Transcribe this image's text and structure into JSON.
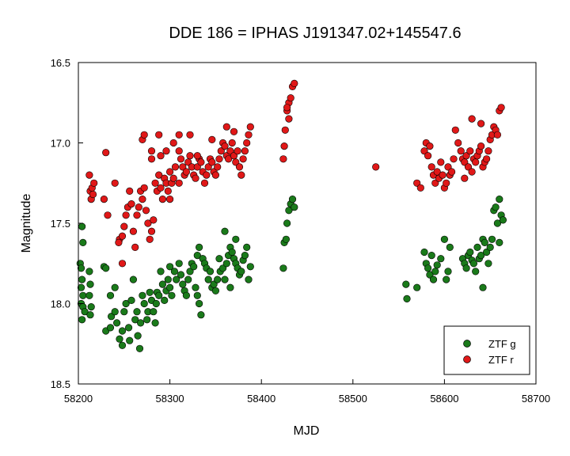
{
  "chart_data": {
    "type": "scatter",
    "title": "DDE 186 = IPHAS J191347.02+145547.6",
    "xlabel": "MJD",
    "ylabel": "Magnitude",
    "xlim": [
      58200,
      58700
    ],
    "ylim": [
      16.5,
      18.5
    ],
    "y_inverted": true,
    "grid": false,
    "legend_position": "bottom-right",
    "xticks": [
      "58200",
      "58300",
      "58400",
      "58500",
      "58600",
      "58700"
    ],
    "yticks": [
      "16.5",
      "17.0",
      "17.5",
      "18.0",
      "18.5"
    ],
    "series": [
      {
        "name": "ZTF g",
        "color": "#1a7a1a",
        "points": [
          [
            58202,
            17.75
          ],
          [
            58204,
            17.52
          ],
          [
            58205,
            17.62
          ],
          [
            58203,
            17.78
          ],
          [
            58204,
            17.85
          ],
          [
            58203,
            17.9
          ],
          [
            58205,
            17.95
          ],
          [
            58203,
            18.0
          ],
          [
            58205,
            18.02
          ],
          [
            58207,
            18.05
          ],
          [
            58204,
            18.1
          ],
          [
            58212,
            17.8
          ],
          [
            58213,
            17.88
          ],
          [
            58212,
            17.95
          ],
          [
            58214,
            18.02
          ],
          [
            58213,
            18.07
          ],
          [
            58228,
            17.77
          ],
          [
            58230,
            17.78
          ],
          [
            58230,
            18.17
          ],
          [
            58235,
            18.15
          ],
          [
            58236,
            18.08
          ],
          [
            58235,
            17.95
          ],
          [
            58240,
            17.9
          ],
          [
            58240,
            18.05
          ],
          [
            58242,
            18.12
          ],
          [
            58245,
            18.22
          ],
          [
            58248,
            18.26
          ],
          [
            58248,
            18.17
          ],
          [
            58250,
            18.05
          ],
          [
            58252,
            18.0
          ],
          [
            58255,
            18.15
          ],
          [
            58256,
            18.23
          ],
          [
            58258,
            17.98
          ],
          [
            58260,
            17.85
          ],
          [
            58262,
            18.1
          ],
          [
            58264,
            18.05
          ],
          [
            58265,
            18.2
          ],
          [
            58267,
            18.28
          ],
          [
            58268,
            18.12
          ],
          [
            58270,
            17.95
          ],
          [
            58272,
            18.0
          ],
          [
            58275,
            18.1
          ],
          [
            58276,
            18.05
          ],
          [
            58278,
            17.93
          ],
          [
            58280,
            17.98
          ],
          [
            58282,
            18.05
          ],
          [
            58284,
            18.12
          ],
          [
            58285,
            18.0
          ],
          [
            58286,
            17.93
          ],
          [
            58288,
            17.95
          ],
          [
            58290,
            17.8
          ],
          [
            58292,
            17.88
          ],
          [
            58294,
            17.98
          ],
          [
            58296,
            17.92
          ],
          [
            58298,
            17.85
          ],
          [
            58300,
            17.9
          ],
          [
            58302,
            17.95
          ],
          [
            58300,
            17.77
          ],
          [
            58305,
            17.8
          ],
          [
            58307,
            17.85
          ],
          [
            58310,
            17.75
          ],
          [
            58312,
            17.82
          ],
          [
            58314,
            17.88
          ],
          [
            58316,
            17.92
          ],
          [
            58318,
            17.95
          ],
          [
            58320,
            17.85
          ],
          [
            58322,
            17.8
          ],
          [
            58324,
            17.75
          ],
          [
            58326,
            17.77
          ],
          [
            58328,
            17.9
          ],
          [
            58330,
            17.95
          ],
          [
            58332,
            18.0
          ],
          [
            58334,
            18.07
          ],
          [
            58330,
            17.7
          ],
          [
            58332,
            17.65
          ],
          [
            58336,
            17.72
          ],
          [
            58338,
            17.75
          ],
          [
            58340,
            17.78
          ],
          [
            58342,
            17.85
          ],
          [
            58344,
            17.8
          ],
          [
            58346,
            17.9
          ],
          [
            58348,
            17.88
          ],
          [
            58350,
            17.92
          ],
          [
            58352,
            17.85
          ],
          [
            58354,
            17.72
          ],
          [
            58355,
            17.8
          ],
          [
            58358,
            17.78
          ],
          [
            58360,
            17.85
          ],
          [
            58362,
            17.75
          ],
          [
            58364,
            17.7
          ],
          [
            58366,
            17.65
          ],
          [
            58368,
            17.68
          ],
          [
            58370,
            17.72
          ],
          [
            58372,
            17.75
          ],
          [
            58374,
            17.78
          ],
          [
            58376,
            17.82
          ],
          [
            58378,
            17.8
          ],
          [
            58380,
            17.73
          ],
          [
            58382,
            17.7
          ],
          [
            58384,
            17.65
          ],
          [
            58386,
            17.85
          ],
          [
            58388,
            17.77
          ],
          [
            58366,
            17.9
          ],
          [
            58360,
            17.55
          ],
          [
            58372,
            17.6
          ],
          [
            58424,
            17.78
          ],
          [
            58425,
            17.62
          ],
          [
            58427,
            17.6
          ],
          [
            58428,
            17.5
          ],
          [
            58430,
            17.42
          ],
          [
            58432,
            17.38
          ],
          [
            58434,
            17.35
          ],
          [
            58436,
            17.4
          ],
          [
            58558,
            17.88
          ],
          [
            58559,
            17.97
          ],
          [
            58570,
            17.9
          ],
          [
            58578,
            17.68
          ],
          [
            58580,
            17.75
          ],
          [
            58582,
            17.78
          ],
          [
            58584,
            17.82
          ],
          [
            58586,
            17.7
          ],
          [
            58588,
            17.85
          ],
          [
            58590,
            17.8
          ],
          [
            58592,
            17.76
          ],
          [
            58596,
            17.72
          ],
          [
            58600,
            17.6
          ],
          [
            58602,
            17.85
          ],
          [
            58604,
            17.8
          ],
          [
            58606,
            17.65
          ],
          [
            58620,
            17.72
          ],
          [
            58622,
            17.75
          ],
          [
            58624,
            17.78
          ],
          [
            58626,
            17.7
          ],
          [
            58628,
            17.68
          ],
          [
            58630,
            17.73
          ],
          [
            58632,
            17.75
          ],
          [
            58634,
            17.8
          ],
          [
            58636,
            17.65
          ],
          [
            58638,
            17.72
          ],
          [
            58640,
            17.7
          ],
          [
            58642,
            17.6
          ],
          [
            58644,
            17.62
          ],
          [
            58646,
            17.68
          ],
          [
            58648,
            17.75
          ],
          [
            58650,
            17.65
          ],
          [
            58652,
            17.6
          ],
          [
            58654,
            17.42
          ],
          [
            58656,
            17.4
          ],
          [
            58658,
            17.5
          ],
          [
            58660,
            17.35
          ],
          [
            58662,
            17.45
          ],
          [
            58664,
            17.48
          ],
          [
            58642,
            17.9
          ],
          [
            58660,
            17.62
          ]
        ]
      },
      {
        "name": "ZTF r",
        "color": "#e01818",
        "points": [
          [
            58212,
            17.2
          ],
          [
            58213,
            17.3
          ],
          [
            58214,
            17.35
          ],
          [
            58215,
            17.28
          ],
          [
            58216,
            17.32
          ],
          [
            58217,
            17.25
          ],
          [
            58228,
            17.35
          ],
          [
            58230,
            17.06
          ],
          [
            58232,
            17.45
          ],
          [
            58240,
            17.25
          ],
          [
            58245,
            17.6
          ],
          [
            58248,
            17.58
          ],
          [
            58250,
            17.52
          ],
          [
            58252,
            17.45
          ],
          [
            58254,
            17.4
          ],
          [
            58256,
            17.3
          ],
          [
            58258,
            17.38
          ],
          [
            58260,
            17.55
          ],
          [
            58262,
            17.65
          ],
          [
            58264,
            17.45
          ],
          [
            58266,
            17.4
          ],
          [
            58268,
            17.3
          ],
          [
            58270,
            17.35
          ],
          [
            58272,
            17.28
          ],
          [
            58274,
            17.42
          ],
          [
            58276,
            17.5
          ],
          [
            58278,
            17.6
          ],
          [
            58280,
            17.55
          ],
          [
            58282,
            17.48
          ],
          [
            58284,
            17.25
          ],
          [
            58286,
            17.3
          ],
          [
            58288,
            17.2
          ],
          [
            58290,
            17.28
          ],
          [
            58292,
            17.35
          ],
          [
            58294,
            17.22
          ],
          [
            58296,
            17.25
          ],
          [
            58298,
            17.3
          ],
          [
            58300,
            17.18
          ],
          [
            58302,
            17.25
          ],
          [
            58304,
            17.22
          ],
          [
            58306,
            17.15
          ],
          [
            58248,
            17.75
          ],
          [
            58244,
            17.62
          ],
          [
            58290,
            17.08
          ],
          [
            58280,
            17.1
          ],
          [
            58300,
            17.35
          ],
          [
            58310,
            17.25
          ],
          [
            58310,
            17.05
          ],
          [
            58312,
            17.1
          ],
          [
            58314,
            17.15
          ],
          [
            58316,
            17.2
          ],
          [
            58318,
            17.18
          ],
          [
            58320,
            17.12
          ],
          [
            58322,
            17.08
          ],
          [
            58324,
            17.15
          ],
          [
            58326,
            17.2
          ],
          [
            58328,
            17.22
          ],
          [
            58330,
            17.15
          ],
          [
            58332,
            17.1
          ],
          [
            58334,
            17.12
          ],
          [
            58336,
            17.18
          ],
          [
            58338,
            17.25
          ],
          [
            58340,
            17.2
          ],
          [
            58342,
            17.15
          ],
          [
            58344,
            17.1
          ],
          [
            58346,
            17.12
          ],
          [
            58348,
            17.18
          ],
          [
            58350,
            17.2
          ],
          [
            58352,
            17.15
          ],
          [
            58354,
            17.1
          ],
          [
            58356,
            17.05
          ],
          [
            58358,
            17.0
          ],
          [
            58360,
            17.02
          ],
          [
            58362,
            17.08
          ],
          [
            58364,
            17.1
          ],
          [
            58366,
            17.05
          ],
          [
            58368,
            17.0
          ],
          [
            58370,
            17.08
          ],
          [
            58372,
            17.12
          ],
          [
            58374,
            17.05
          ],
          [
            58376,
            17.15
          ],
          [
            58378,
            17.2
          ],
          [
            58380,
            17.1
          ],
          [
            58382,
            17.05
          ],
          [
            58384,
            17.0
          ],
          [
            58386,
            16.95
          ],
          [
            58388,
            16.9
          ],
          [
            58362,
            16.9
          ],
          [
            58370,
            16.93
          ],
          [
            58346,
            16.98
          ],
          [
            58330,
            17.08
          ],
          [
            58322,
            16.95
          ],
          [
            58310,
            16.95
          ],
          [
            58304,
            17.0
          ],
          [
            58296,
            17.05
          ],
          [
            58288,
            16.95
          ],
          [
            58280,
            17.05
          ],
          [
            58270,
            16.98
          ],
          [
            58272,
            16.95
          ],
          [
            58424,
            17.1
          ],
          [
            58425,
            17.02
          ],
          [
            58426,
            16.92
          ],
          [
            58428,
            16.8
          ],
          [
            58430,
            16.75
          ],
          [
            58432,
            16.72
          ],
          [
            58434,
            16.65
          ],
          [
            58436,
            16.63
          ],
          [
            58430,
            16.85
          ],
          [
            58428,
            16.78
          ],
          [
            58525,
            17.15
          ],
          [
            58570,
            17.25
          ],
          [
            58574,
            17.28
          ],
          [
            58578,
            17.05
          ],
          [
            58580,
            17.0
          ],
          [
            58582,
            17.08
          ],
          [
            58584,
            17.02
          ],
          [
            58586,
            17.15
          ],
          [
            58588,
            17.2
          ],
          [
            58590,
            17.25
          ],
          [
            58592,
            17.18
          ],
          [
            58594,
            17.22
          ],
          [
            58596,
            17.12
          ],
          [
            58598,
            17.2
          ],
          [
            58600,
            17.28
          ],
          [
            58602,
            17.25
          ],
          [
            58604,
            17.15
          ],
          [
            58606,
            17.2
          ],
          [
            58608,
            17.18
          ],
          [
            58610,
            17.1
          ],
          [
            58615,
            17.0
          ],
          [
            58618,
            17.05
          ],
          [
            58620,
            17.1
          ],
          [
            58622,
            17.12
          ],
          [
            58624,
            17.08
          ],
          [
            58626,
            17.15
          ],
          [
            58628,
            17.05
          ],
          [
            58630,
            17.18
          ],
          [
            58632,
            17.1
          ],
          [
            58634,
            17.12
          ],
          [
            58636,
            17.08
          ],
          [
            58638,
            17.05
          ],
          [
            58640,
            17.02
          ],
          [
            58642,
            17.15
          ],
          [
            58644,
            17.12
          ],
          [
            58646,
            17.1
          ],
          [
            58648,
            17.05
          ],
          [
            58650,
            16.98
          ],
          [
            58652,
            16.95
          ],
          [
            58654,
            16.9
          ],
          [
            58656,
            16.92
          ],
          [
            58658,
            16.95
          ],
          [
            58660,
            16.8
          ],
          [
            58662,
            16.78
          ],
          [
            58630,
            16.85
          ],
          [
            58640,
            16.88
          ],
          [
            58622,
            17.22
          ],
          [
            58612,
            16.92
          ]
        ]
      }
    ]
  }
}
